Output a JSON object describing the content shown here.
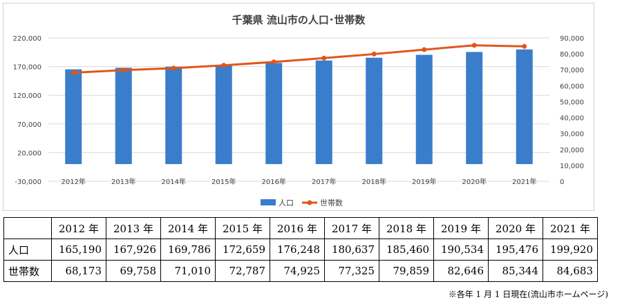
{
  "chart_data": {
    "type": "bar+line",
    "title": "千葉県 流山市の人口･世帯数",
    "categories": [
      "2012年",
      "2013年",
      "2014年",
      "2015年",
      "2016年",
      "2017年",
      "2018年",
      "2019年",
      "2020年",
      "2021年"
    ],
    "series": [
      {
        "name": "人口",
        "type": "bar",
        "axis": "left",
        "color": "#3a7dcb",
        "values": [
          165190,
          167926,
          169786,
          172659,
          176248,
          180637,
          185460,
          190534,
          195476,
          199920
        ]
      },
      {
        "name": "世帯数",
        "type": "line",
        "axis": "right",
        "color": "#e0561a",
        "values": [
          68173,
          69758,
          71010,
          72787,
          74925,
          77325,
          79859,
          82646,
          85344,
          84683
        ]
      }
    ],
    "y_left": {
      "ylim": [
        -30000,
        220000
      ],
      "ticks": [
        -30000,
        20000,
        70000,
        120000,
        170000,
        220000
      ],
      "tick_labels": [
        "-30,000",
        "20,000",
        "70,000",
        "120,000",
        "170,000",
        "220,000"
      ]
    },
    "y_right": {
      "ylim": [
        0,
        90000
      ],
      "ticks": [
        0,
        10000,
        20000,
        30000,
        40000,
        50000,
        60000,
        70000,
        80000,
        90000
      ],
      "tick_labels": [
        "0",
        "10,000",
        "20,000",
        "30,000",
        "40,000",
        "50,000",
        "60,000",
        "70,000",
        "80,000",
        "90,000"
      ]
    },
    "grid": true,
    "legend": "bottom"
  },
  "table": {
    "headers": [
      "2012 年",
      "2013 年",
      "2014 年",
      "2015 年",
      "2016 年",
      "2017 年",
      "2018 年",
      "2019 年",
      "2020 年",
      "2021 年"
    ],
    "rows": [
      {
        "label": "人口",
        "values": [
          "165,190",
          "167,926",
          "169,786",
          "172,659",
          "176,248",
          "180,637",
          "185,460",
          "190,534",
          "195,476",
          "199,920"
        ]
      },
      {
        "label": "世帯数",
        "values": [
          "68,173",
          "69,758",
          "71,010",
          "72,787",
          "74,925",
          "77,325",
          "79,859",
          "82,646",
          "85,344",
          "84,683"
        ]
      }
    ]
  },
  "footnote": "※各年 1 月 1 日現在(流山市ホームページ)"
}
